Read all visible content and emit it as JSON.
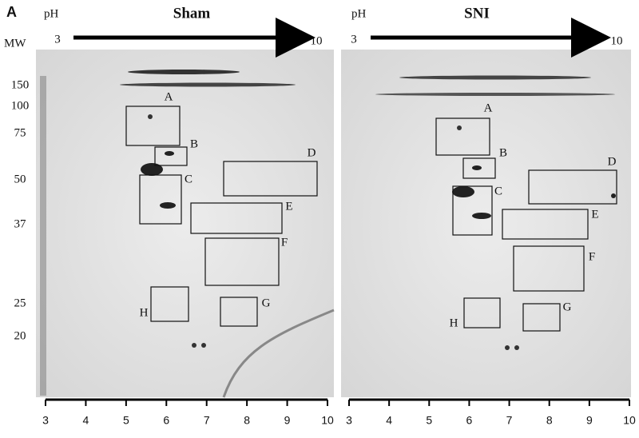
{
  "figure_label": "A",
  "mw_label": "MW",
  "mw_ticks": [
    150,
    100,
    75,
    50,
    37,
    25,
    20
  ],
  "panels": [
    {
      "title": "Sham",
      "ph_label": "pH",
      "ph_start": 3,
      "ph_end": 10,
      "box_labels": [
        "A",
        "B",
        "C",
        "D",
        "E",
        "F",
        "G",
        "H"
      ],
      "x_ticks": [
        3,
        4,
        5,
        6,
        7,
        8,
        9,
        10
      ]
    },
    {
      "title": "SNI",
      "ph_label": "pH",
      "ph_start": 3,
      "ph_end": 10,
      "box_labels": [
        "A",
        "B",
        "C",
        "D",
        "E",
        "F",
        "G",
        "H"
      ],
      "x_ticks": [
        3,
        4,
        5,
        6,
        7,
        8,
        9,
        10
      ]
    }
  ]
}
